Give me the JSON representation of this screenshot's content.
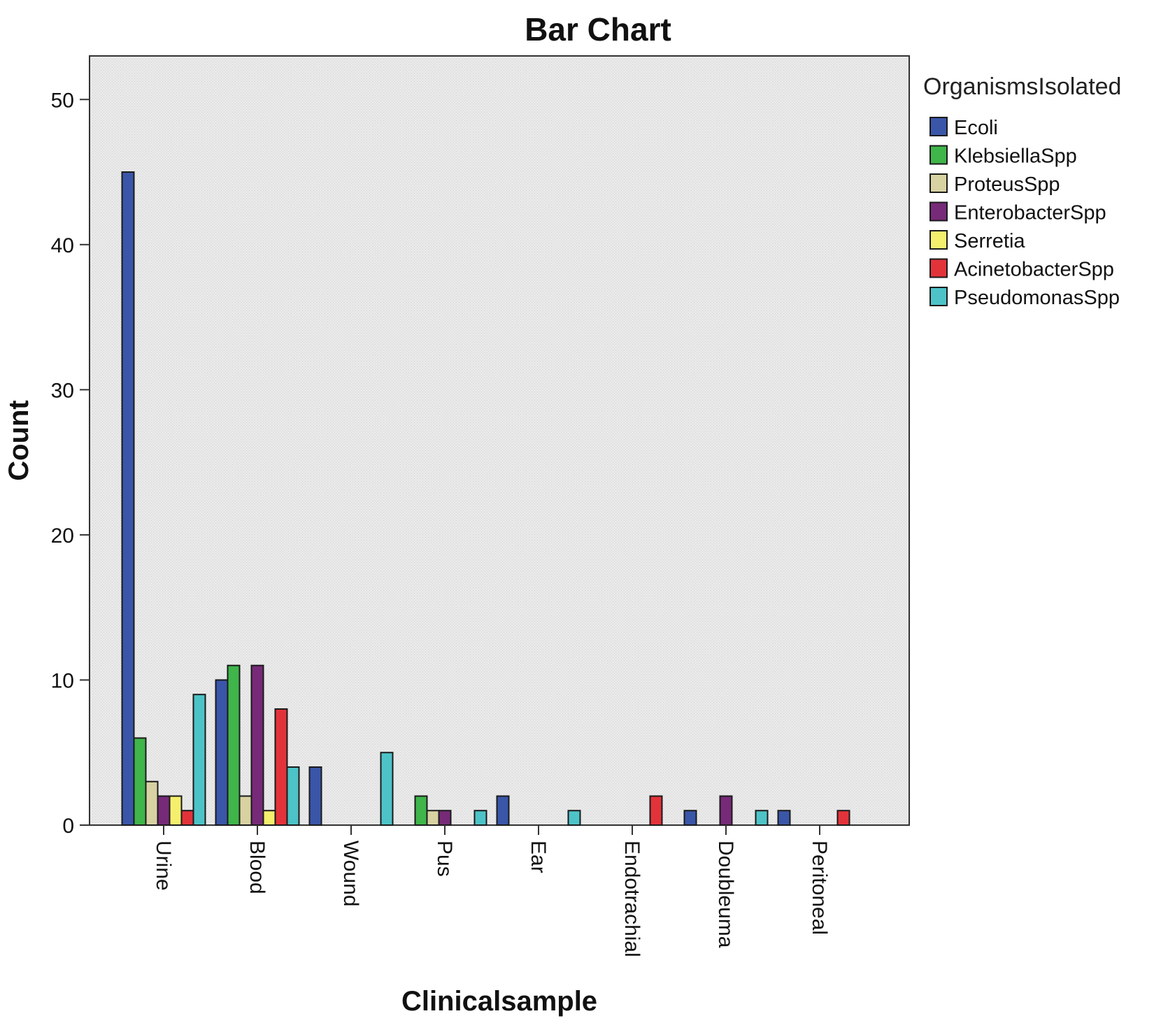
{
  "chart_data": {
    "type": "bar",
    "title": "Bar Chart",
    "xlabel": "Clinicalsample",
    "ylabel": "Count",
    "ylim": [
      0,
      53
    ],
    "yticks": [
      0,
      10,
      20,
      30,
      40,
      50
    ],
    "grid": false,
    "legend_title": "OrganismsIsolated",
    "legend_position": "right",
    "categories": [
      "Urine",
      "Blood",
      "Wound",
      "Pus",
      "Ear",
      "Endotrachial",
      "Doubleuma",
      "Peritoneal"
    ],
    "series": [
      {
        "name": "Ecoli",
        "color": "#3a56a8",
        "values": [
          45,
          10,
          4,
          0,
          2,
          0,
          1,
          1
        ]
      },
      {
        "name": "KlebsiellaSpp",
        "color": "#3fb54a",
        "values": [
          6,
          11,
          0,
          2,
          0,
          0,
          0,
          0
        ]
      },
      {
        "name": "ProteusSpp",
        "color": "#d8d2a2",
        "values": [
          3,
          2,
          0,
          1,
          0,
          0,
          0,
          0
        ]
      },
      {
        "name": "EnterobacterSpp",
        "color": "#762a78",
        "values": [
          2,
          11,
          0,
          1,
          0,
          0,
          2,
          0
        ]
      },
      {
        "name": "Serretia",
        "color": "#f5ef6e",
        "values": [
          2,
          1,
          0,
          0,
          0,
          0,
          0,
          0
        ]
      },
      {
        "name": "AcinetobacterSpp",
        "color": "#e3333a",
        "values": [
          1,
          8,
          0,
          0,
          0,
          2,
          0,
          1
        ]
      },
      {
        "name": "PseudomonasSpp",
        "color": "#4dc3c8",
        "values": [
          9,
          4,
          5,
          1,
          1,
          0,
          1,
          0
        ]
      }
    ],
    "plot_background": "#e8e8e8"
  }
}
